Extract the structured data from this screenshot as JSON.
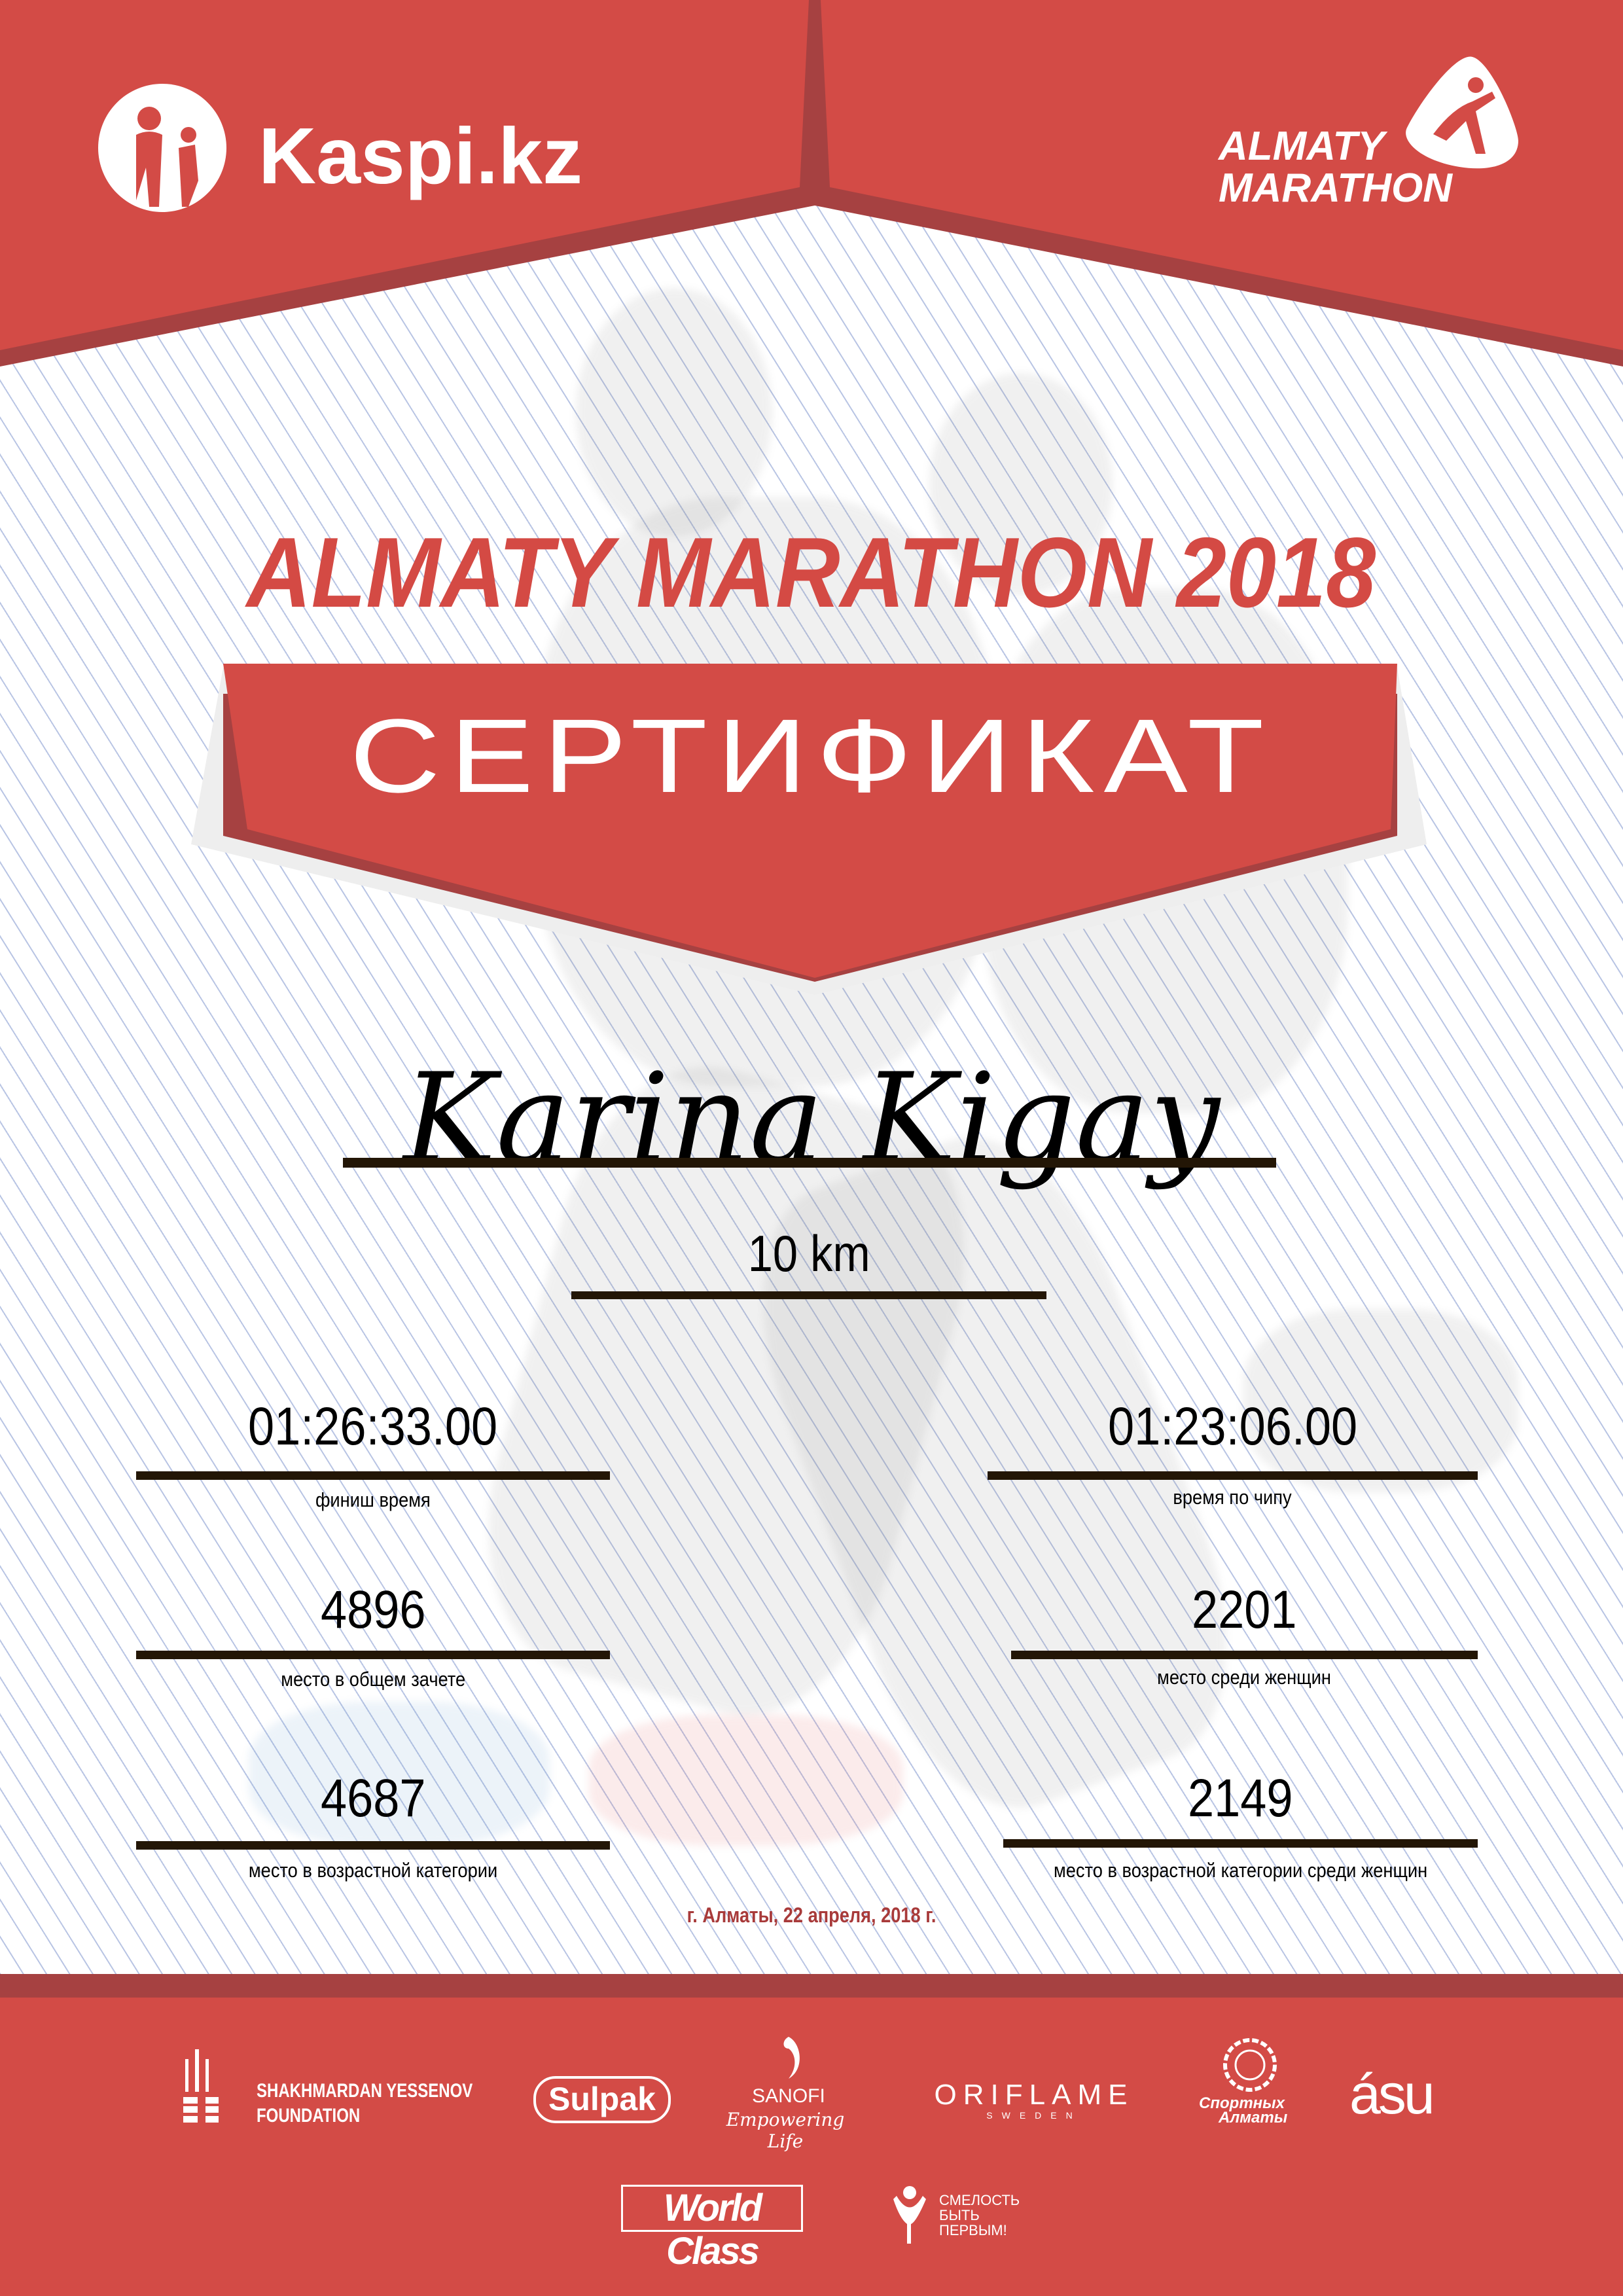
{
  "colors": {
    "brand_red": "#d34b46",
    "dark_red": "#a64141",
    "text_red": "#d44a44",
    "date_red": "#a83a3a",
    "rule": "#231606"
  },
  "header": {
    "sponsor_logo": "Kaspi.kz",
    "event_logo": {
      "line1": "ALMATY",
      "line2": "MARATHON"
    }
  },
  "title": "ALMATY MARATHON 2018",
  "banner": "СЕРТИФИКАТ",
  "participant": {
    "name": "Karina Kigay",
    "distance": "10 km"
  },
  "results": [
    {
      "value": "01:26:33.00",
      "label": "финиш время"
    },
    {
      "value": "01:23:06.00",
      "label": "время по чипу"
    },
    {
      "value": "4896",
      "label": "место в общем зачете"
    },
    {
      "value": "2201",
      "label": "место среди женщин"
    },
    {
      "value": "4687",
      "label": "место в возрастной категории"
    },
    {
      "value": "2149",
      "label": "место в возрастной категории среди женщин"
    }
  ],
  "date": "г. Алматы, 22 апреля, 2018 г.",
  "partners": {
    "yessenov": {
      "line1": "SHAKHMARDAN YESSENOV",
      "line2": "FOUNDATION"
    },
    "sulpak": "Sulpak",
    "sanofi": {
      "name": "SANOFI",
      "tagline": "Empowering Life"
    },
    "oriflame": {
      "name": "ORIFLAME",
      "sub": "SWEDEN"
    },
    "sport_almaty": {
      "line1": "Спортных",
      "line2": "Алматы"
    },
    "asu": "ásu",
    "worldclass": "World Class",
    "fund": {
      "line1": "СМЕЛОСТЬ",
      "line2": "БЫТЬ",
      "line3": "ПЕРВЫМ!"
    }
  }
}
